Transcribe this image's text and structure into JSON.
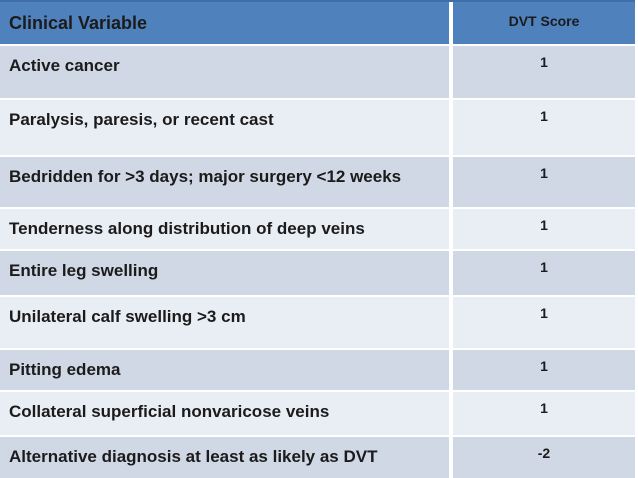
{
  "table": {
    "header": {
      "variable_label": "Clinical Variable",
      "score_label": "DVT Score"
    },
    "rows": [
      {
        "variable": "Active cancer",
        "score": "1"
      },
      {
        "variable": "Paralysis, paresis, or recent cast",
        "score": "1"
      },
      {
        "variable": "Bedridden for >3 days; major surgery <12 weeks",
        "score": "1"
      },
      {
        "variable": "Tenderness along distribution of deep veins",
        "score": "1"
      },
      {
        "variable": "Entire leg swelling",
        "score": "1"
      },
      {
        "variable": "Unilateral calf swelling >3 cm",
        "score": "1"
      },
      {
        "variable": "Pitting edema",
        "score": "1"
      },
      {
        "variable": "Collateral superficial nonvaricose veins",
        "score": "1"
      },
      {
        "variable": "Alternative diagnosis at least as likely as DVT",
        "score": "-2"
      }
    ]
  },
  "colors": {
    "header_bg": "#4f81bd",
    "row_dark": "#d0d7e5",
    "row_light": "#e9edf4",
    "top_border": "#3f6ea8",
    "text": "#1b1b1b"
  }
}
